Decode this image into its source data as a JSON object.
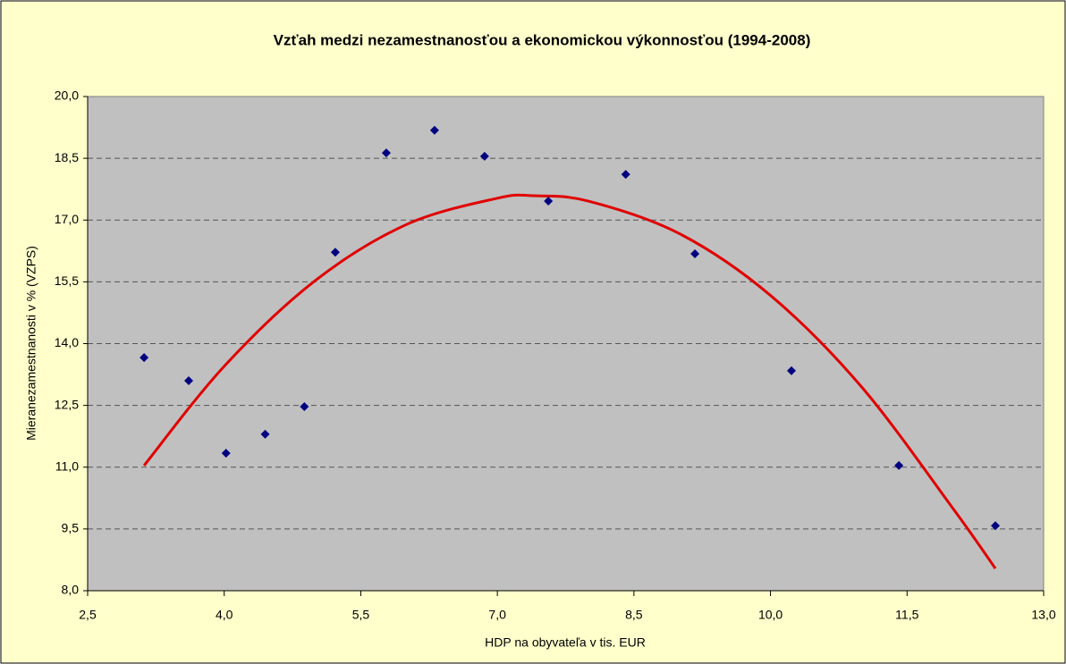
{
  "chart_data": {
    "type": "scatter",
    "title": "Vzťah medzi nezamestnanosťou a ekonomickou výkonnosťou (1994-2008)",
    "xlabel": "HDP na obyvateľa v tis. EUR",
    "ylabel": "Mieranezamestnanosti v % (VZPS)",
    "series": [
      {
        "color": "#000080",
        "x": [
          3.12,
          3.61,
          4.02,
          4.45,
          4.88,
          5.22,
          5.78,
          6.31,
          6.86,
          7.56,
          8.41,
          9.17,
          10.23,
          11.41,
          12.47
        ],
        "values": [
          13.66,
          13.1,
          11.34,
          11.8,
          12.47,
          16.22,
          18.63,
          19.18,
          18.55,
          17.46,
          18.11,
          16.18,
          13.34,
          11.04,
          9.58
        ]
      }
    ],
    "trendline": {
      "color": "#e00000",
      "x": [
        3.12,
        4.0,
        5.0,
        6.0,
        7.0,
        7.4,
        8.0,
        9.0,
        10.0,
        11.0,
        12.0,
        12.47
      ],
      "values": [
        11.04,
        13.45,
        15.53,
        16.89,
        17.53,
        17.59,
        17.46,
        16.67,
        15.17,
        12.95,
        10.01,
        8.54
      ]
    },
    "xlim": [
      2.5,
      13.0
    ],
    "xticks": [
      {
        "value": 2.5,
        "label": "2,5"
      },
      {
        "value": 4.0,
        "label": "4,0"
      },
      {
        "value": 5.5,
        "label": "5,5"
      },
      {
        "value": 7.0,
        "label": "7,0"
      },
      {
        "value": 8.5,
        "label": "8,5"
      },
      {
        "value": 10.0,
        "label": "10,0"
      },
      {
        "value": 11.5,
        "label": "11,5"
      },
      {
        "value": 13.0,
        "label": "13,0"
      }
    ],
    "ylim": [
      8.0,
      20.0
    ],
    "yticks": [
      {
        "value": 8.0,
        "label": "8,0"
      },
      {
        "value": 9.5,
        "label": "9,5"
      },
      {
        "value": 11.0,
        "label": "11,0"
      },
      {
        "value": 12.5,
        "label": "12,5"
      },
      {
        "value": 14.0,
        "label": "14,0"
      },
      {
        "value": 15.5,
        "label": "15,5"
      },
      {
        "value": 17.0,
        "label": "17,0"
      },
      {
        "value": 18.5,
        "label": "18,5"
      },
      {
        "value": 20.0,
        "label": "20,0"
      }
    ],
    "grid": true
  }
}
